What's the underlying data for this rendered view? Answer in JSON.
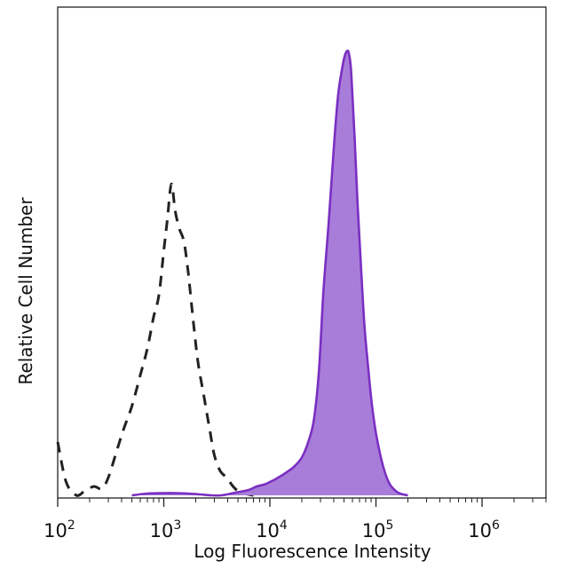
{
  "chart_data": {
    "type": "area",
    "title": "",
    "xlabel": "Log Fluorescence Intensity",
    "ylabel": "Relative Cell Number",
    "x_scale": "log",
    "xlim": [
      100,
      4000000
    ],
    "ylim": [
      0,
      1
    ],
    "x_ticks": [
      {
        "value": 100,
        "base": "10",
        "exponent": "2"
      },
      {
        "value": 1000,
        "base": "10",
        "exponent": "3"
      },
      {
        "value": 10000,
        "base": "10",
        "exponent": "4"
      },
      {
        "value": 100000,
        "base": "10",
        "exponent": "5"
      },
      {
        "value": 1000000,
        "base": "10",
        "exponent": "6"
      }
    ],
    "grid": false,
    "legend": "none",
    "series": [
      {
        "style": "dashed-line",
        "color": "#222222",
        "x": [
          100,
          120,
          150,
          180,
          220,
          260,
          300,
          360,
          420,
          500,
          600,
          700,
          800,
          900,
          1000,
          1080,
          1180,
          1280,
          1400,
          1550,
          1700,
          1900,
          2100,
          2400,
          2700,
          3000,
          3400,
          3900,
          4500,
          5000,
          5600,
          6300,
          7000
        ],
        "values": [
          0.12,
          0.03,
          0.0,
          0.01,
          0.02,
          0.015,
          0.04,
          0.1,
          0.15,
          0.2,
          0.27,
          0.33,
          0.4,
          0.45,
          0.55,
          0.62,
          0.7,
          0.64,
          0.6,
          0.57,
          0.5,
          0.39,
          0.3,
          0.22,
          0.15,
          0.09,
          0.055,
          0.04,
          0.02,
          0.01,
          0.005,
          0.002,
          0.0
        ]
      },
      {
        "style": "filled-area",
        "color": "#7a2fc2",
        "fill": "#a87dd9",
        "x": [
          500,
          700,
          1000,
          1300,
          1700,
          2200,
          2800,
          3500,
          4300,
          5200,
          6300,
          7500,
          9000,
          11000,
          13000,
          15000,
          17000,
          20000,
          23000,
          26000,
          29000,
          32000,
          36000,
          40000,
          44000,
          48000,
          51000,
          54000,
          56000,
          58000,
          60000,
          63000,
          67000,
          72000,
          78000,
          85000,
          92000,
          100000,
          110000,
          122000,
          135000,
          150000,
          165000,
          180000,
          200000
        ],
        "values": [
          0.0,
          0.004,
          0.005,
          0.005,
          0.004,
          0.002,
          0.0,
          0.0,
          0.004,
          0.008,
          0.012,
          0.02,
          0.025,
          0.035,
          0.045,
          0.055,
          0.065,
          0.085,
          0.12,
          0.17,
          0.28,
          0.46,
          0.62,
          0.78,
          0.9,
          0.96,
          0.99,
          1.0,
          0.99,
          0.96,
          0.9,
          0.8,
          0.66,
          0.52,
          0.38,
          0.28,
          0.2,
          0.14,
          0.09,
          0.05,
          0.025,
          0.012,
          0.005,
          0.002,
          0.0
        ]
      }
    ]
  }
}
